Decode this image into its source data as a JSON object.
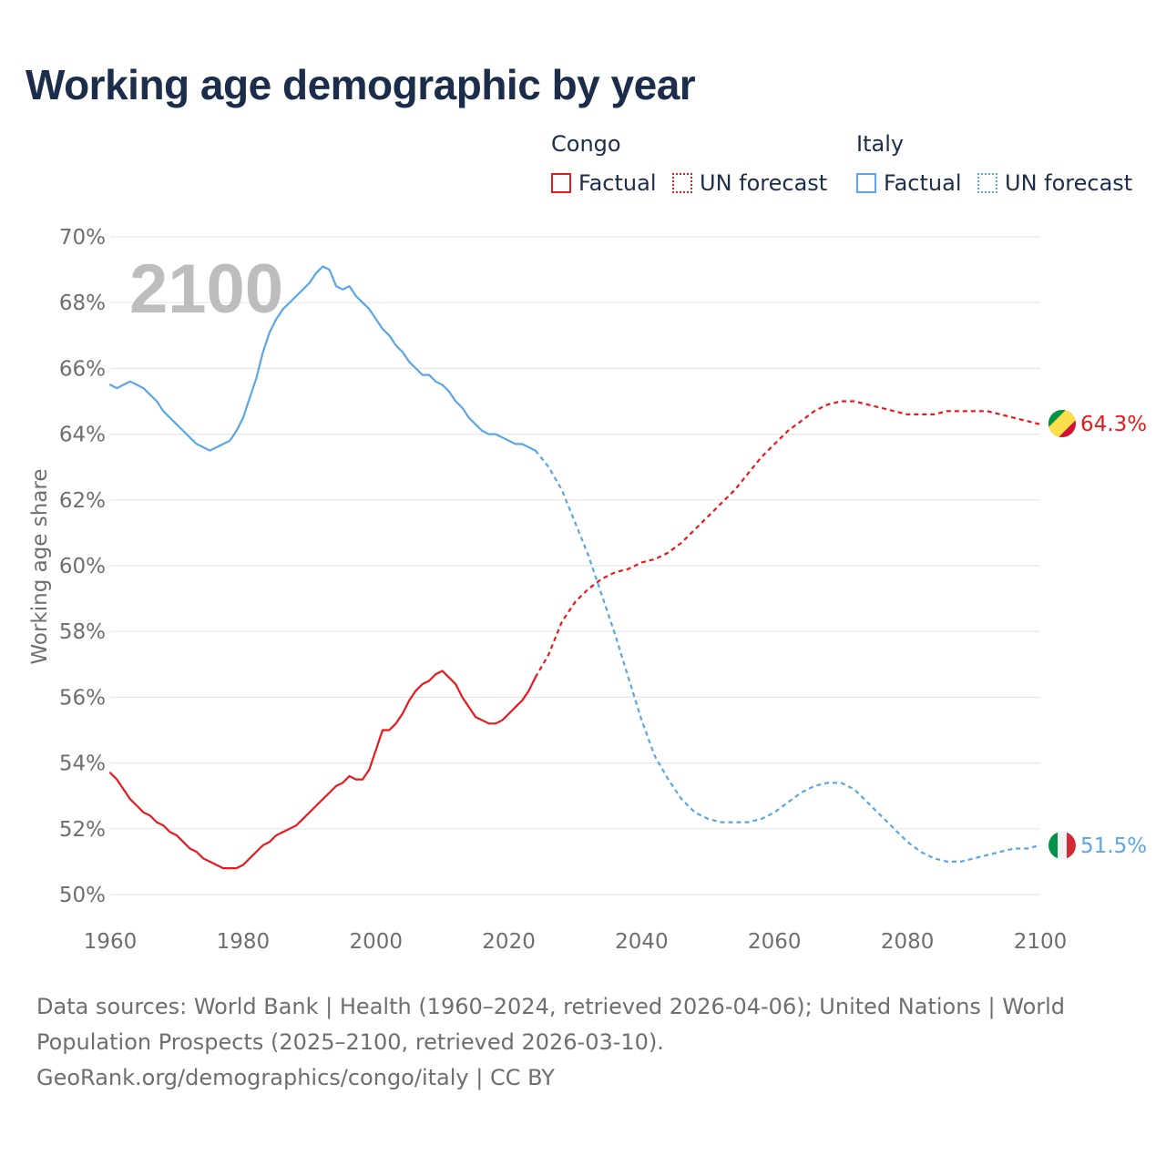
{
  "title": "Working age demographic by year",
  "legend": {
    "groups": [
      {
        "name": "Congo",
        "color": "#e8191c",
        "factual_label": "Factual",
        "forecast_label": "UN forecast"
      },
      {
        "name": "Italy",
        "color": "#5aa6e6",
        "factual_label": "Factual",
        "forecast_label": "UN forecast"
      }
    ]
  },
  "year_watermark": "2100",
  "footer": {
    "line1": "Data sources: World Bank | Health (1960–2024, retrieved 2026-04-06); United Nations | World",
    "line2": "Population Prospects (2025–2100, retrieved 2026-03-10).",
    "line3": "GeoRank.org/demographics/congo/italy | CC BY"
  },
  "chart_data": {
    "type": "line",
    "title": "Working age demographic by year",
    "xlabel": "",
    "ylabel": "Working age share",
    "xlim": [
      1960,
      2100
    ],
    "ylim": [
      50,
      70
    ],
    "x_ticks": [
      1960,
      1980,
      2000,
      2020,
      2040,
      2060,
      2080,
      2100
    ],
    "y_ticks": [
      50,
      52,
      54,
      56,
      58,
      60,
      62,
      64,
      66,
      68,
      70
    ],
    "y_tick_labels": [
      "50%",
      "52%",
      "54%",
      "56%",
      "58%",
      "60%",
      "62%",
      "64%",
      "66%",
      "68%",
      "70%"
    ],
    "grid": true,
    "series": [
      {
        "name": "Congo",
        "color": "#e8191c",
        "end_label": "64.3%",
        "factual": {
          "x": [
            1960,
            1961,
            1962,
            1963,
            1964,
            1965,
            1966,
            1967,
            1968,
            1969,
            1970,
            1971,
            1972,
            1973,
            1974,
            1975,
            1976,
            1977,
            1978,
            1979,
            1980,
            1981,
            1982,
            1983,
            1984,
            1985,
            1986,
            1987,
            1988,
            1989,
            1990,
            1991,
            1992,
            1993,
            1994,
            1995,
            1996,
            1997,
            1998,
            1999,
            2000,
            2001,
            2002,
            2003,
            2004,
            2005,
            2006,
            2007,
            2008,
            2009,
            2010,
            2011,
            2012,
            2013,
            2014,
            2015,
            2016,
            2017,
            2018,
            2019,
            2020,
            2021,
            2022,
            2023,
            2024
          ],
          "y": [
            53.7,
            53.5,
            53.2,
            52.9,
            52.7,
            52.5,
            52.4,
            52.2,
            52.1,
            51.9,
            51.8,
            51.6,
            51.4,
            51.3,
            51.1,
            51.0,
            50.9,
            50.8,
            50.8,
            50.8,
            50.9,
            51.1,
            51.3,
            51.5,
            51.6,
            51.8,
            51.9,
            52.0,
            52.1,
            52.3,
            52.5,
            52.7,
            52.9,
            53.1,
            53.3,
            53.4,
            53.6,
            53.5,
            53.5,
            53.8,
            54.4,
            55.0,
            55.0,
            55.2,
            55.5,
            55.9,
            56.2,
            56.4,
            56.5,
            56.7,
            56.8,
            56.6,
            56.4,
            56.0,
            55.7,
            55.4,
            55.3,
            55.2,
            55.2,
            55.3,
            55.5,
            55.7,
            55.9,
            56.2,
            56.6
          ]
        },
        "forecast": {
          "x": [
            2024,
            2026,
            2028,
            2030,
            2032,
            2034,
            2036,
            2038,
            2040,
            2042,
            2044,
            2046,
            2048,
            2050,
            2052,
            2054,
            2056,
            2058,
            2060,
            2062,
            2064,
            2066,
            2068,
            2070,
            2072,
            2074,
            2076,
            2078,
            2080,
            2082,
            2084,
            2086,
            2088,
            2090,
            2092,
            2094,
            2096,
            2098,
            2100
          ],
          "y": [
            56.6,
            57.3,
            58.3,
            58.9,
            59.3,
            59.6,
            59.8,
            59.9,
            60.1,
            60.2,
            60.4,
            60.7,
            61.1,
            61.5,
            61.9,
            62.3,
            62.8,
            63.3,
            63.7,
            64.1,
            64.4,
            64.7,
            64.9,
            65.0,
            65.0,
            64.9,
            64.8,
            64.7,
            64.6,
            64.6,
            64.6,
            64.7,
            64.7,
            64.7,
            64.7,
            64.6,
            64.5,
            64.4,
            64.3
          ]
        }
      },
      {
        "name": "Italy",
        "color": "#5aa6e6",
        "end_label": "51.5%",
        "factual": {
          "x": [
            1960,
            1961,
            1962,
            1963,
            1964,
            1965,
            1966,
            1967,
            1968,
            1969,
            1970,
            1971,
            1972,
            1973,
            1974,
            1975,
            1976,
            1977,
            1978,
            1979,
            1980,
            1981,
            1982,
            1983,
            1984,
            1985,
            1986,
            1987,
            1988,
            1989,
            1990,
            1991,
            1992,
            1993,
            1994,
            1995,
            1996,
            1997,
            1998,
            1999,
            2000,
            2001,
            2002,
            2003,
            2004,
            2005,
            2006,
            2007,
            2008,
            2009,
            2010,
            2011,
            2012,
            2013,
            2014,
            2015,
            2016,
            2017,
            2018,
            2019,
            2020,
            2021,
            2022,
            2023,
            2024
          ],
          "y": [
            65.5,
            65.4,
            65.5,
            65.6,
            65.5,
            65.4,
            65.2,
            65.0,
            64.7,
            64.5,
            64.3,
            64.1,
            63.9,
            63.7,
            63.6,
            63.5,
            63.6,
            63.7,
            63.8,
            64.1,
            64.5,
            65.1,
            65.7,
            66.5,
            67.1,
            67.5,
            67.8,
            68.0,
            68.2,
            68.4,
            68.6,
            68.9,
            69.1,
            69.0,
            68.5,
            68.4,
            68.5,
            68.2,
            68.0,
            67.8,
            67.5,
            67.2,
            67.0,
            66.7,
            66.5,
            66.2,
            66.0,
            65.8,
            65.8,
            65.6,
            65.5,
            65.3,
            65.0,
            64.8,
            64.5,
            64.3,
            64.1,
            64.0,
            64.0,
            63.9,
            63.8,
            63.7,
            63.7,
            63.6,
            63.5
          ]
        },
        "forecast": {
          "x": [
            2024,
            2026,
            2028,
            2030,
            2032,
            2034,
            2036,
            2038,
            2040,
            2042,
            2044,
            2046,
            2048,
            2050,
            2052,
            2054,
            2056,
            2058,
            2060,
            2062,
            2064,
            2066,
            2068,
            2070,
            2072,
            2074,
            2076,
            2078,
            2080,
            2082,
            2084,
            2086,
            2088,
            2090,
            2092,
            2094,
            2096,
            2098,
            2100
          ],
          "y": [
            63.5,
            63.0,
            62.3,
            61.3,
            60.3,
            59.1,
            57.9,
            56.6,
            55.3,
            54.2,
            53.5,
            52.9,
            52.5,
            52.3,
            52.2,
            52.2,
            52.2,
            52.3,
            52.5,
            52.8,
            53.1,
            53.3,
            53.4,
            53.4,
            53.2,
            52.8,
            52.4,
            52.0,
            51.6,
            51.3,
            51.1,
            51.0,
            51.0,
            51.1,
            51.2,
            51.3,
            51.4,
            51.4,
            51.5
          ]
        }
      }
    ]
  }
}
